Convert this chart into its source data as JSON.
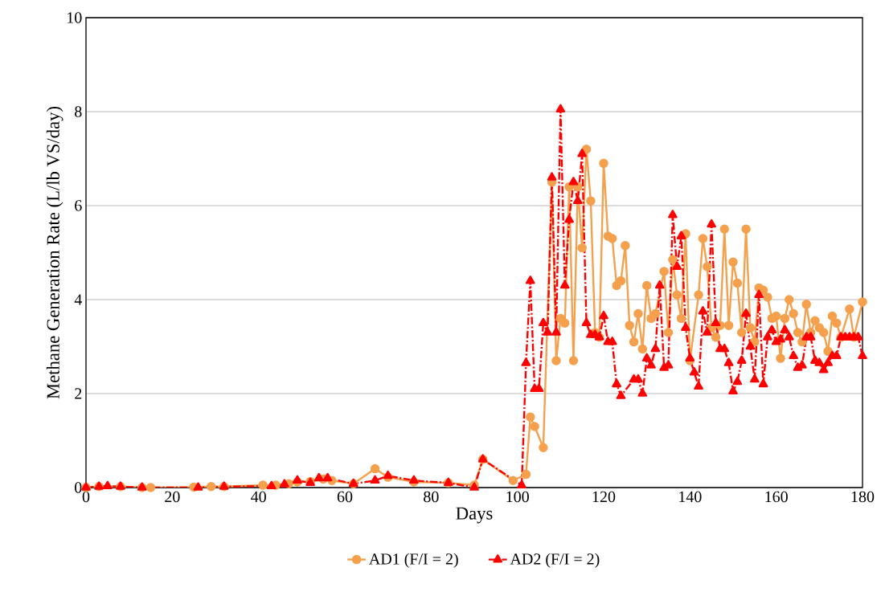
{
  "chart_data": {
    "type": "line",
    "xlabel": "Days",
    "ylabel": "Methane Generation Rate (L/lb VS/day)",
    "xlim": [
      0,
      180
    ],
    "xticks": [
      0,
      20,
      40,
      60,
      80,
      100,
      120,
      140,
      160,
      180
    ],
    "ylim": [
      0,
      10
    ],
    "yticks": [
      0,
      2,
      4,
      6,
      8,
      10
    ],
    "grid": "y",
    "legend": "bottom",
    "series": [
      {
        "name": "AD1 (F/I = 2)",
        "color": "#f4a04d",
        "marker": "circle",
        "line_style": "solid",
        "x": [
          0,
          3,
          8,
          13,
          15,
          25,
          29,
          32,
          41,
          44,
          47,
          49,
          52,
          55,
          57,
          62,
          67,
          70,
          76,
          84,
          90,
          92,
          99,
          102,
          103,
          104,
          106,
          108,
          109,
          110,
          111,
          112,
          113,
          114,
          115,
          116,
          117,
          118,
          119,
          120,
          121,
          122,
          123,
          124,
          125,
          126,
          127,
          128,
          129,
          130,
          131,
          132,
          134,
          135,
          136,
          137,
          138,
          139,
          140,
          142,
          143,
          144,
          145,
          146,
          147,
          148,
          149,
          150,
          151,
          152,
          153,
          154,
          155,
          156,
          157,
          158,
          159,
          160,
          161,
          162,
          163,
          164,
          165,
          166,
          167,
          168,
          169,
          170,
          171,
          172,
          173,
          174,
          175,
          177,
          178,
          180
        ],
        "values": [
          0,
          0.02,
          0.02,
          0,
          0,
          0.01,
          0.02,
          0.02,
          0.05,
          0.05,
          0.08,
          0.12,
          0.13,
          0.18,
          0.15,
          0.08,
          0.4,
          0.22,
          0.12,
          0.1,
          0.05,
          0.6,
          0.15,
          0.28,
          1.5,
          1.3,
          0.85,
          6.5,
          2.7,
          3.6,
          3.5,
          6.4,
          2.7,
          6.4,
          5.1,
          7.2,
          6.1,
          3.3,
          3.2,
          6.9,
          5.35,
          5.3,
          4.3,
          4.4,
          5.15,
          3.45,
          3.1,
          3.7,
          2.95,
          4.3,
          3.6,
          3.7,
          4.6,
          3.3,
          4.85,
          4.1,
          3.6,
          5.4,
          2.7,
          4.1,
          5.3,
          4.7,
          3.4,
          3.2,
          3.45,
          5.5,
          3.45,
          4.8,
          4.35,
          3.3,
          5.5,
          3.4,
          3.1,
          4.25,
          4.2,
          4.05,
          3.6,
          3.65,
          2.75,
          3.6,
          4.0,
          3.7,
          3.3,
          3.1,
          3.9,
          3.3,
          3.55,
          3.4,
          3.3,
          2.9,
          3.65,
          3.5,
          3.2,
          3.8,
          3.2,
          3.95
        ]
      },
      {
        "name": "AD2 (F/I = 2)",
        "color": "#ff0000",
        "marker": "triangle",
        "line_style": "dashed",
        "x": [
          0,
          3,
          5,
          8,
          13,
          26,
          32,
          43,
          46,
          49,
          52,
          54,
          56,
          62,
          67,
          70,
          76,
          84,
          90,
          92,
          101,
          102,
          103,
          104,
          105,
          106,
          107,
          108,
          109,
          110,
          111,
          112,
          113,
          114,
          115,
          116,
          117,
          118,
          119,
          120,
          121,
          122,
          123,
          124,
          127,
          128,
          129,
          130,
          131,
          132,
          133,
          134,
          135,
          136,
          137,
          138,
          139,
          140,
          141,
          142,
          143,
          144,
          145,
          146,
          147,
          148,
          149,
          150,
          151,
          152,
          153,
          154,
          155,
          156,
          157,
          158,
          159,
          160,
          161,
          162,
          163,
          164,
          165,
          166,
          167,
          168,
          169,
          170,
          171,
          172,
          173,
          174,
          175,
          176,
          177,
          178,
          179,
          180
        ],
        "values": [
          0,
          0.02,
          0.03,
          0.02,
          0,
          0,
          0.02,
          0.03,
          0.07,
          0.15,
          0.1,
          0.2,
          0.2,
          0.08,
          0.15,
          0.25,
          0.15,
          0.1,
          0,
          0.6,
          0.05,
          2.65,
          4.4,
          2.1,
          2.1,
          3.5,
          3.3,
          6.6,
          3.3,
          8.05,
          4.3,
          5.7,
          6.5,
          6.1,
          7.1,
          3.5,
          3.25,
          3.25,
          3.2,
          3.65,
          3.1,
          3.1,
          2.2,
          1.95,
          2.3,
          2.3,
          2.0,
          2.75,
          2.6,
          2.95,
          4.3,
          2.55,
          2.6,
          5.8,
          4.7,
          5.35,
          3.4,
          2.75,
          2.45,
          2.15,
          3.75,
          3.3,
          5.6,
          3.5,
          2.95,
          2.95,
          2.65,
          2.05,
          2.25,
          2.7,
          3.7,
          3.0,
          2.3,
          4.1,
          2.2,
          3.2,
          3.35,
          3.1,
          3.15,
          3.35,
          3.2,
          2.8,
          2.55,
          2.6,
          3.2,
          3.2,
          2.7,
          2.65,
          2.5,
          2.65,
          2.8,
          2.8,
          3.2,
          3.2,
          3.2,
          3.2,
          3.2,
          2.8
        ]
      }
    ]
  }
}
